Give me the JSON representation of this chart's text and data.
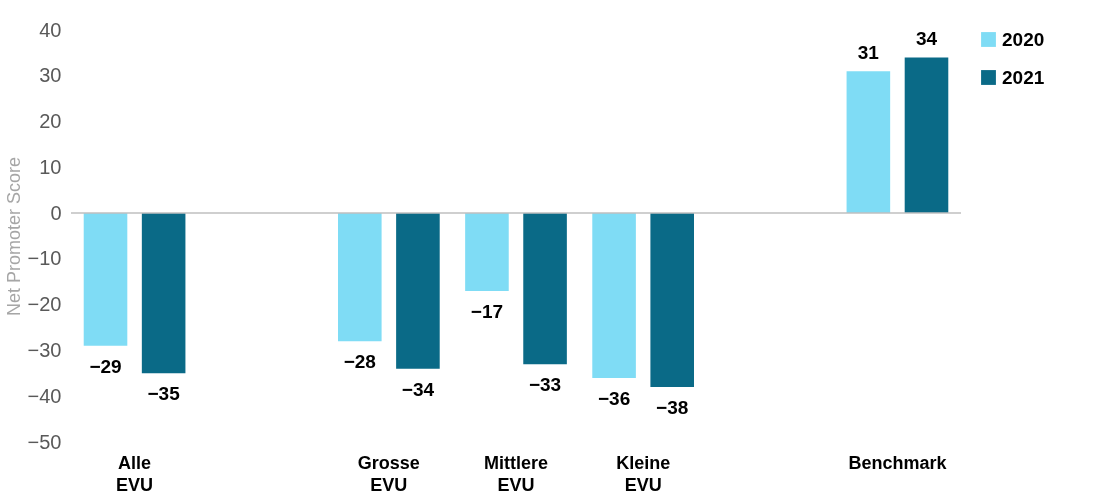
{
  "chart_data": {
    "type": "bar",
    "ylabel": "Net Promoter Score",
    "categories": [
      "Alle EVU",
      null,
      "Grosse EVU",
      "Mittlere EVU",
      "Kleine EVU",
      null,
      "Benchmark"
    ],
    "series": [
      {
        "name": "2020",
        "color": "#7fdcf5",
        "values": [
          -29,
          null,
          -28,
          -17,
          -36,
          null,
          31
        ]
      },
      {
        "name": "2021",
        "color": "#0a6a87",
        "values": [
          -35,
          null,
          -34,
          -33,
          -38,
          null,
          34
        ]
      }
    ],
    "ylim": [
      -50,
      40
    ],
    "yticks": [
      -50,
      -40,
      -30,
      -20,
      -10,
      0,
      10,
      20,
      30,
      40
    ],
    "ref_lines": [
      {
        "axis": "y",
        "value": 0,
        "color": "#bfbfbf"
      }
    ],
    "grid": false,
    "legend": "right",
    "data_labels": true
  }
}
